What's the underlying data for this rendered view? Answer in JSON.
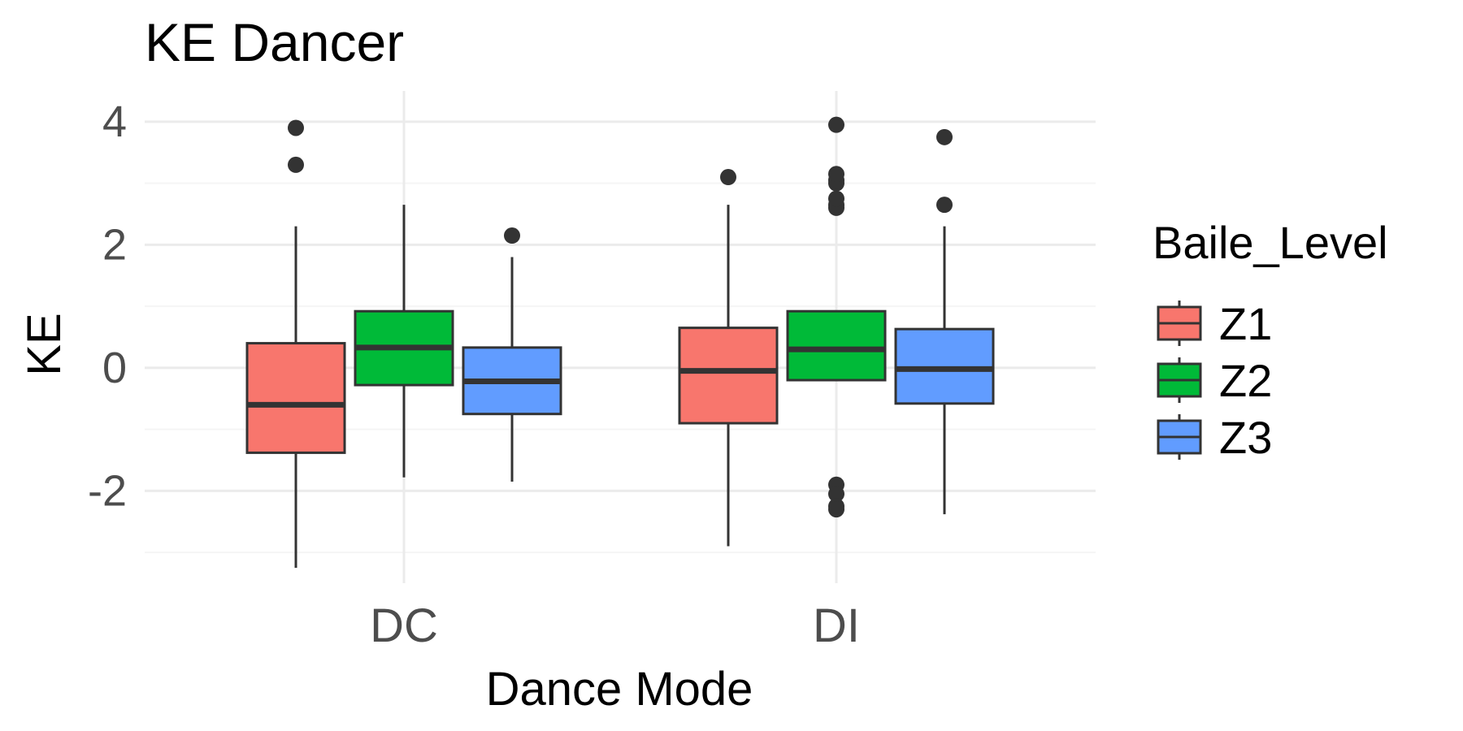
{
  "chart_data": {
    "type": "boxplot",
    "title": "KE Dancer",
    "xlabel": "Dance Mode",
    "ylabel": "KE",
    "categories": [
      "DC",
      "DI"
    ],
    "ylim": [
      -3.5,
      4.5
    ],
    "yticks": [
      -2,
      0,
      2,
      4
    ],
    "yticks_labels": [
      "-2",
      "0",
      "2",
      "4"
    ],
    "grid": true,
    "legend": {
      "title": "Baile_Level",
      "position": "right"
    },
    "colors": {
      "Z1": "#F8766D",
      "Z2": "#00BA38",
      "Z3": "#619CFF",
      "box_outline": "#333333",
      "grid_major": "#EBEBEB",
      "grid_minor": "#F5F5F5",
      "tick_text": "#4D4D4D"
    },
    "series": [
      {
        "name": "Z1",
        "boxes": [
          {
            "category": "DC",
            "whisker_low": -3.25,
            "q1": -1.38,
            "median": -0.6,
            "q3": 0.4,
            "whisker_high": 2.3,
            "outliers": [
              3.3,
              3.9
            ]
          },
          {
            "category": "DI",
            "whisker_low": -2.9,
            "q1": -0.9,
            "median": -0.05,
            "q3": 0.65,
            "whisker_high": 2.65,
            "outliers": [
              3.1
            ]
          }
        ]
      },
      {
        "name": "Z2",
        "boxes": [
          {
            "category": "DC",
            "whisker_low": -1.78,
            "q1": -0.28,
            "median": 0.33,
            "q3": 0.92,
            "whisker_high": 2.65,
            "outliers": []
          },
          {
            "category": "DI",
            "whisker_low": null,
            "q1": -0.2,
            "median": 0.3,
            "q3": 0.92,
            "whisker_high": null,
            "outliers": [
              -1.9,
              -2.05,
              -2.25,
              -2.3,
              2.6,
              2.65,
              2.75,
              3.0,
              3.05,
              3.15,
              3.95
            ]
          }
        ]
      },
      {
        "name": "Z3",
        "boxes": [
          {
            "category": "DC",
            "whisker_low": -1.85,
            "q1": -0.75,
            "median": -0.22,
            "q3": 0.33,
            "whisker_high": 1.8,
            "outliers": [
              2.15
            ]
          },
          {
            "category": "DI",
            "whisker_low": -2.38,
            "q1": -0.58,
            "median": -0.02,
            "q3": 0.63,
            "whisker_high": 2.3,
            "outliers": [
              2.65,
              3.75
            ]
          }
        ]
      }
    ]
  }
}
